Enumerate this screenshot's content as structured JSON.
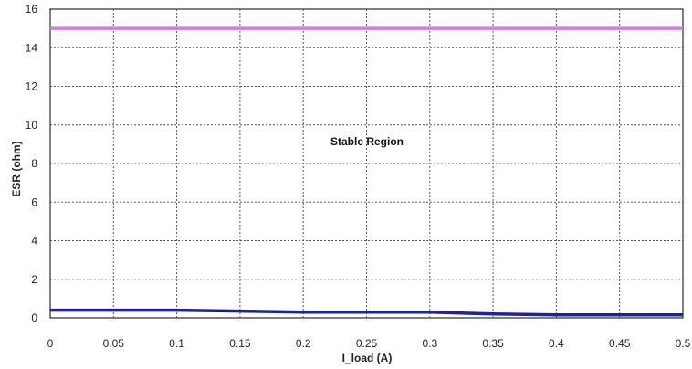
{
  "chart_data": {
    "type": "line",
    "xlabel": "I_load (A)",
    "ylabel": "ESR (ohm)",
    "xlim": [
      0,
      0.5
    ],
    "ylim": [
      0,
      16
    ],
    "x_ticks": [
      "0",
      "0.05",
      "0.1",
      "0.15",
      "0.2",
      "0.25",
      "0.3",
      "0.35",
      "0.4",
      "0.45",
      "0.5"
    ],
    "y_ticks": [
      "0",
      "2",
      "4",
      "6",
      "8",
      "10",
      "12",
      "14",
      "16"
    ],
    "grid": true,
    "annotation": "Stable Region",
    "series": [
      {
        "color": "#d77be0",
        "x": [
          0,
          0.5
        ],
        "y": [
          15,
          15
        ]
      },
      {
        "color": "#1f1fa8",
        "x": [
          0,
          0.05,
          0.1,
          0.15,
          0.2,
          0.25,
          0.3,
          0.35,
          0.4,
          0.45,
          0.5
        ],
        "y": [
          0.4,
          0.4,
          0.4,
          0.35,
          0.3,
          0.3,
          0.3,
          0.2,
          0.15,
          0.15,
          0.15
        ]
      }
    ]
  }
}
